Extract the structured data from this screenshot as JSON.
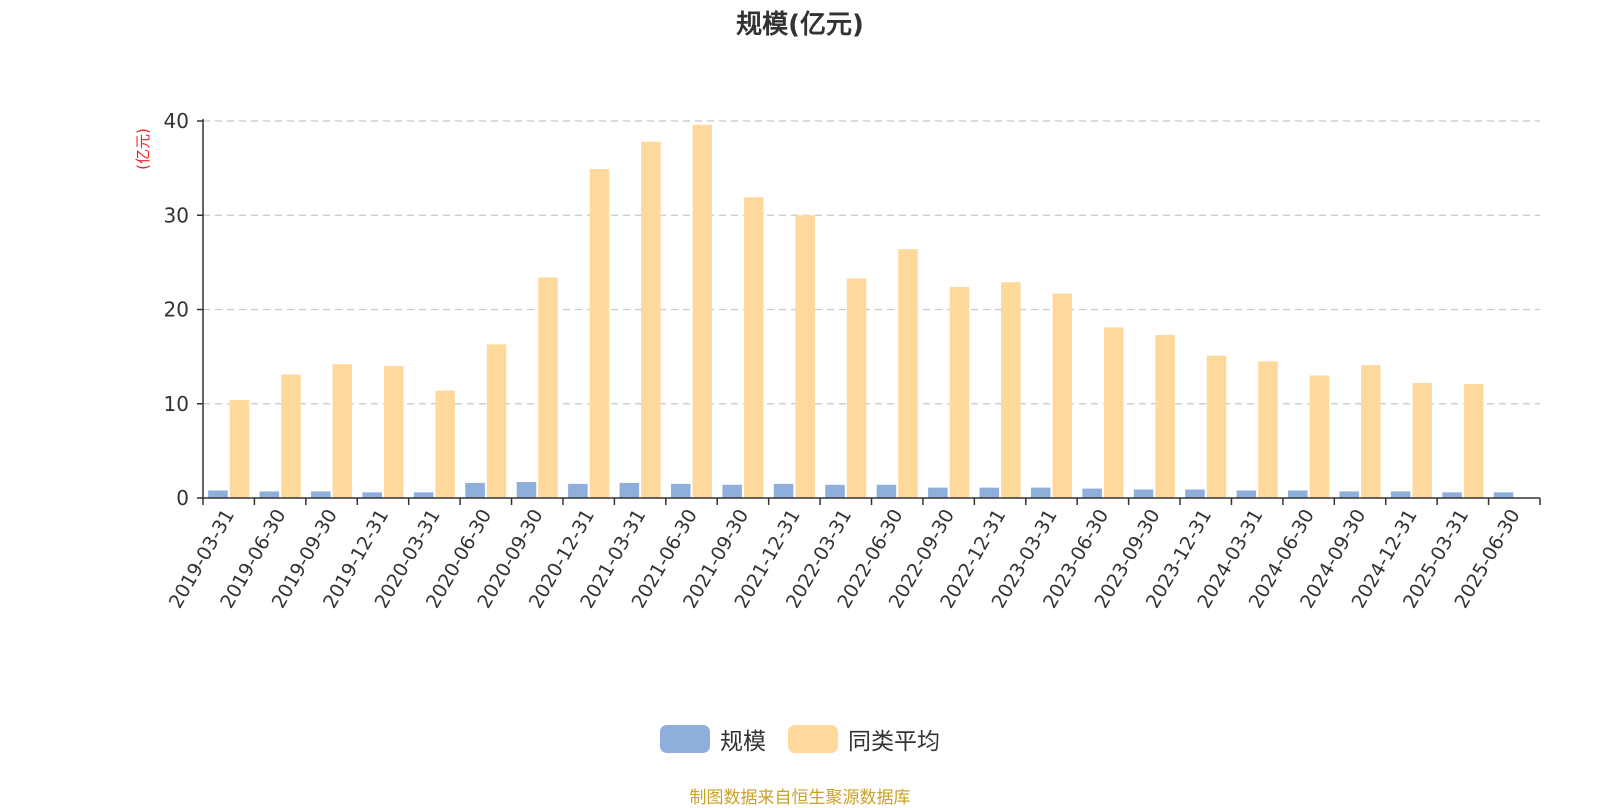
{
  "title": "规模(亿元)",
  "source_note": "制图数据来自恒生聚源数据库",
  "colors": {
    "scale": "#8eaedb",
    "peer_avg": "#ffd99b",
    "unit_label": "#ee2222",
    "grid": "#c8c8c8",
    "axis": "#333333"
  },
  "chart_data": {
    "type": "bar",
    "title": "规模(亿元)",
    "ylabel": "(亿元)",
    "xlabel": "",
    "ylim": [
      0,
      40
    ],
    "yticks": [
      0,
      10,
      20,
      30,
      40
    ],
    "grid": "horizontal dashed",
    "legend_position": "bottom",
    "categories": [
      "2019-03-31",
      "2019-06-30",
      "2019-09-30",
      "2019-12-31",
      "2020-03-31",
      "2020-06-30",
      "2020-09-30",
      "2020-12-31",
      "2021-03-31",
      "2021-06-30",
      "2021-09-30",
      "2021-12-31",
      "2022-03-31",
      "2022-06-30",
      "2022-09-30",
      "2022-12-31",
      "2023-03-31",
      "2023-06-30",
      "2023-09-30",
      "2023-12-31",
      "2024-03-31",
      "2024-06-30",
      "2024-09-30",
      "2024-12-31",
      "2025-03-31",
      "2025-06-30"
    ],
    "series": [
      {
        "name": "规模",
        "values": [
          0.8,
          0.7,
          0.7,
          0.6,
          0.6,
          1.6,
          1.7,
          1.5,
          1.6,
          1.5,
          1.4,
          1.5,
          1.4,
          1.4,
          1.1,
          1.1,
          1.1,
          1.0,
          0.9,
          0.9,
          0.8,
          0.8,
          0.7,
          0.7,
          0.6,
          0.6
        ]
      },
      {
        "name": "同类平均",
        "values": [
          10.4,
          13.1,
          14.2,
          14.0,
          11.4,
          16.3,
          23.4,
          34.9,
          37.8,
          39.6,
          31.9,
          30.0,
          23.3,
          26.4,
          22.4,
          22.9,
          21.7,
          18.1,
          17.3,
          15.1,
          14.5,
          13.0,
          14.1,
          12.2,
          12.1,
          null
        ]
      }
    ]
  }
}
